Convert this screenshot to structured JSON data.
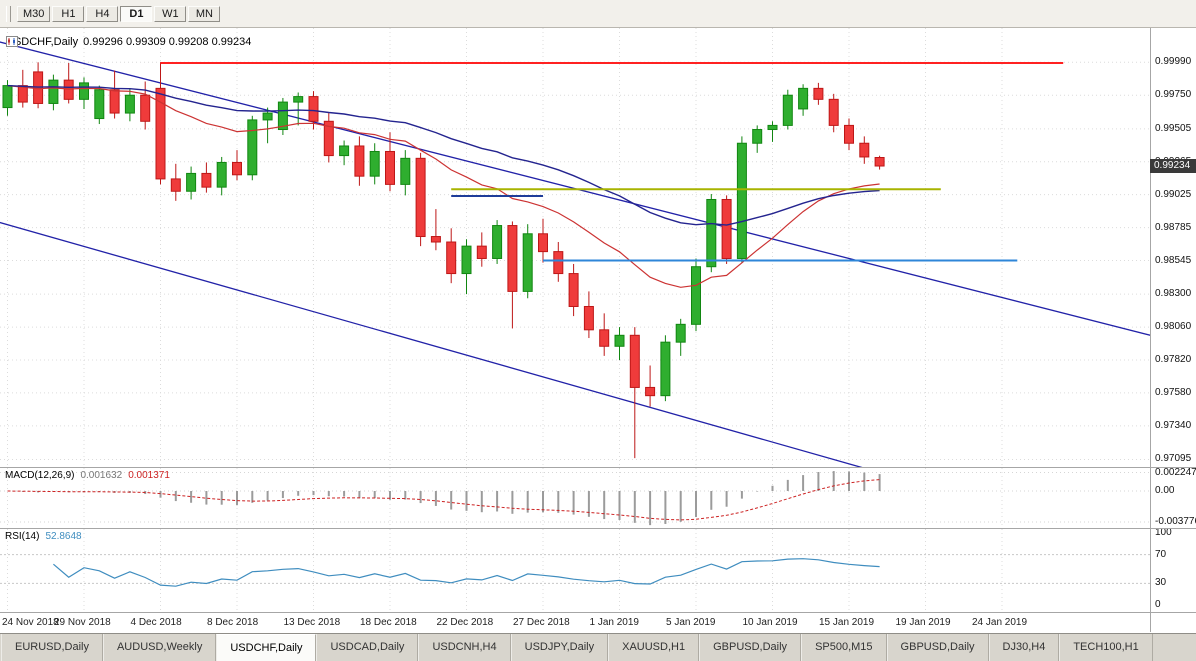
{
  "toolbar": {
    "timeframes": [
      {
        "label": "M30",
        "active": false
      },
      {
        "label": "H1",
        "active": false
      },
      {
        "label": "H4",
        "active": false
      },
      {
        "label": "D1",
        "active": true
      },
      {
        "label": "W1",
        "active": false
      },
      {
        "label": "MN",
        "active": false
      }
    ]
  },
  "chart": {
    "title": "USDCHF,Daily",
    "ohlc_text": "0.99296 0.99309 0.99208 0.99234",
    "price_badge": "0.99234",
    "price_ticks": [
      "0.99990",
      "0.99750",
      "0.99505",
      "0.99265",
      "0.99025",
      "0.98785",
      "0.98545",
      "0.98300",
      "0.98060",
      "0.97820",
      "0.97580",
      "0.97340",
      "0.97095"
    ]
  },
  "chart_data": {
    "type": "candlestick",
    "symbol": "USDCHF",
    "timeframe": "Daily",
    "current_bar": {
      "open": 0.99296,
      "high": 0.99309,
      "low": 0.99208,
      "close": 0.99234
    },
    "price_range_shown": [
      0.9704,
      1.0024
    ],
    "candles_ohlc": [
      [
        0.9966,
        0.9986,
        0.996,
        0.9982
      ],
      [
        0.9982,
        0.99935,
        0.9966,
        0.997
      ],
      [
        0.9992,
        0.9999,
        0.99655,
        0.9969
      ],
      [
        0.9969,
        0.999,
        0.9964,
        0.9986
      ],
      [
        0.9986,
        0.99985,
        0.9969,
        0.9972
      ],
      [
        0.9972,
        0.9988,
        0.9965,
        0.9984
      ],
      [
        0.9958,
        0.9982,
        0.9954,
        0.9979
      ],
      [
        0.9979,
        0.9993,
        0.9958,
        0.9962
      ],
      [
        0.9962,
        0.998,
        0.9956,
        0.9975
      ],
      [
        0.9975,
        0.9985,
        0.995,
        0.9956
      ],
      [
        0.998,
        0.9999,
        0.991,
        0.9914
      ],
      [
        0.9914,
        0.9925,
        0.9898,
        0.9905
      ],
      [
        0.9905,
        0.9923,
        0.9899,
        0.9918
      ],
      [
        0.9918,
        0.9926,
        0.9904,
        0.9908
      ],
      [
        0.9908,
        0.993,
        0.9902,
        0.9926
      ],
      [
        0.9926,
        0.9935,
        0.9913,
        0.9917
      ],
      [
        0.9917,
        0.996,
        0.9913,
        0.9957
      ],
      [
        0.9957,
        0.9966,
        0.994,
        0.9962
      ],
      [
        0.995,
        0.9973,
        0.9946,
        0.997
      ],
      [
        0.997,
        0.9977,
        0.9953,
        0.9974
      ],
      [
        0.9974,
        0.9978,
        0.995,
        0.9956
      ],
      [
        0.9956,
        0.9962,
        0.9926,
        0.9931
      ],
      [
        0.9931,
        0.9942,
        0.9924,
        0.9938
      ],
      [
        0.9938,
        0.9945,
        0.9909,
        0.9916
      ],
      [
        0.9916,
        0.994,
        0.991,
        0.9934
      ],
      [
        0.9934,
        0.9948,
        0.9905,
        0.991
      ],
      [
        0.991,
        0.9935,
        0.9902,
        0.9929
      ],
      [
        0.9929,
        0.9933,
        0.9865,
        0.9872
      ],
      [
        0.9872,
        0.9892,
        0.9862,
        0.9868
      ],
      [
        0.9868,
        0.9878,
        0.9838,
        0.9845
      ],
      [
        0.9845,
        0.987,
        0.983,
        0.9865
      ],
      [
        0.9865,
        0.9875,
        0.985,
        0.9856
      ],
      [
        0.9856,
        0.9884,
        0.9852,
        0.988
      ],
      [
        0.988,
        0.9883,
        0.9805,
        0.9832
      ],
      [
        0.9832,
        0.9881,
        0.9827,
        0.9874
      ],
      [
        0.9874,
        0.9885,
        0.9853,
        0.9861
      ],
      [
        0.9861,
        0.9868,
        0.9839,
        0.9845
      ],
      [
        0.9845,
        0.9852,
        0.9814,
        0.9821
      ],
      [
        0.9821,
        0.9832,
        0.9798,
        0.9804
      ],
      [
        0.9804,
        0.9816,
        0.9785,
        0.9792
      ],
      [
        0.9792,
        0.9806,
        0.9782,
        0.98
      ],
      [
        0.98,
        0.9806,
        0.97105,
        0.9762
      ],
      [
        0.9762,
        0.9778,
        0.9748,
        0.9756
      ],
      [
        0.9756,
        0.98,
        0.9752,
        0.9795
      ],
      [
        0.9795,
        0.9812,
        0.9785,
        0.9808
      ],
      [
        0.9808,
        0.9856,
        0.9803,
        0.985
      ],
      [
        0.985,
        0.9903,
        0.9846,
        0.9899
      ],
      [
        0.9899,
        0.9902,
        0.9852,
        0.9856
      ],
      [
        0.9856,
        0.9945,
        0.9853,
        0.994
      ],
      [
        0.994,
        0.9953,
        0.9933,
        0.995
      ],
      [
        0.995,
        0.9956,
        0.9941,
        0.9953
      ],
      [
        0.9953,
        0.9979,
        0.995,
        0.9975
      ],
      [
        0.9965,
        0.9983,
        0.996,
        0.998
      ],
      [
        0.998,
        0.9984,
        0.9968,
        0.9972
      ],
      [
        0.9972,
        0.9976,
        0.9948,
        0.9953
      ],
      [
        0.9953,
        0.9958,
        0.9935,
        0.994
      ],
      [
        0.994,
        0.9945,
        0.9925,
        0.993
      ],
      [
        0.99296,
        0.99309,
        0.99208,
        0.99234
      ]
    ],
    "date_labels": [
      {
        "text": "24 Nov 2018",
        "bar": 0
      },
      {
        "text": "29 Nov 2018",
        "bar": 5
      },
      {
        "text": "4 Dec 2018",
        "bar": 10
      },
      {
        "text": "8 Dec 2018",
        "bar": 15
      },
      {
        "text": "13 Dec 2018",
        "bar": 20
      },
      {
        "text": "18 Dec 2018",
        "bar": 25
      },
      {
        "text": "22 Dec 2018",
        "bar": 30
      },
      {
        "text": "27 Dec 2018",
        "bar": 35
      },
      {
        "text": "1 Jan 2019",
        "bar": 40
      },
      {
        "text": "5 Jan 2019",
        "bar": 45
      },
      {
        "text": "10 Jan 2019",
        "bar": 50
      },
      {
        "text": "15 Jan 2019",
        "bar": 55
      },
      {
        "text": "19 Jan 2019",
        "bar": 60
      },
      {
        "text": "24 Jan 2019",
        "bar": 65
      }
    ],
    "overlays": {
      "horizontal_lines": [
        {
          "name": "resistance",
          "price": 0.99985,
          "from_bar": 10,
          "to_bar": 69,
          "color": "#ff2121",
          "width": 2
        },
        {
          "name": "olive-level",
          "price": 0.99065,
          "from_bar": 29,
          "to_bar": 61,
          "color": "#a8b400",
          "width": 2
        },
        {
          "name": "navy-segment",
          "price": 0.99015,
          "from_bar": 29,
          "to_bar": 35,
          "color": "#1f3d99",
          "width": 2
        },
        {
          "name": "support",
          "price": 0.98545,
          "from_bar": 35,
          "to_bar": 66,
          "color": "#2e86d8",
          "width": 2
        }
      ],
      "channel_lines": [
        {
          "name": "channel-upper",
          "from": {
            "bar": -0.5,
            "price": 1.00138
          },
          "to": {
            "bar": 74.7,
            "price": 0.98
          },
          "color": "#2222a8",
          "width": 1.3
        },
        {
          "name": "channel-lower",
          "from": {
            "bar": -0.5,
            "price": 0.98822
          },
          "to": {
            "bar": 60.3,
            "price": 0.96895
          },
          "color": "#2222a8",
          "width": 1.3
        }
      ],
      "moving_averages": [
        {
          "name": "ma-fast",
          "period": 20,
          "method": "ema",
          "color": "#cc3333",
          "width": 1.2
        },
        {
          "name": "ma-slow",
          "period": 45,
          "method": "ema",
          "color": "#24248f",
          "width": 1.4
        }
      ]
    },
    "colors": {
      "up": "#2fae2f",
      "up_border": "#118611",
      "down": "#ef3b3b",
      "down_border": "#bd1717",
      "background": "#ffffff",
      "grid": "#dcdcdc"
    }
  },
  "macd": {
    "label": "MACD(12,26,9)",
    "value_main": "0.001632",
    "value_signal": "0.001371",
    "fast": 12,
    "slow": 26,
    "signal": 9,
    "axis": [
      {
        "text": "0.002247",
        "value": 0.002247
      },
      {
        "text": "0.00",
        "value": 0
      },
      {
        "text": "-0.003776",
        "value": -0.003776
      }
    ],
    "range": [
      -0.0045,
      0.0028
    ],
    "hist_color": "#9b9b9b",
    "signal_color": "#cc2222"
  },
  "rsi": {
    "label": "RSI(14)",
    "value": "52.8648",
    "period": 14,
    "axis": [
      {
        "text": "100",
        "value": 100
      },
      {
        "text": "70",
        "value": 70
      },
      {
        "text": "30",
        "value": 30
      },
      {
        "text": "0",
        "value": 0
      }
    ],
    "levels": [
      70,
      30
    ],
    "color": "#3f8dbf"
  },
  "tabs": [
    {
      "label": "EURUSD,Daily",
      "active": false
    },
    {
      "label": "AUDUSD,Weekly",
      "active": false
    },
    {
      "label": "USDCHF,Daily",
      "active": true
    },
    {
      "label": "USDCAD,Daily",
      "active": false
    },
    {
      "label": "USDCNH,H4",
      "active": false
    },
    {
      "label": "USDJPY,Daily",
      "active": false
    },
    {
      "label": "XAUUSD,H1",
      "active": false
    },
    {
      "label": "GBPUSD,Daily",
      "active": false
    },
    {
      "label": "SP500,M15",
      "active": false
    },
    {
      "label": "GBPUSD,Daily",
      "active": false
    },
    {
      "label": "DJ30,H4",
      "active": false
    },
    {
      "label": "TECH100,H1",
      "active": false
    }
  ]
}
